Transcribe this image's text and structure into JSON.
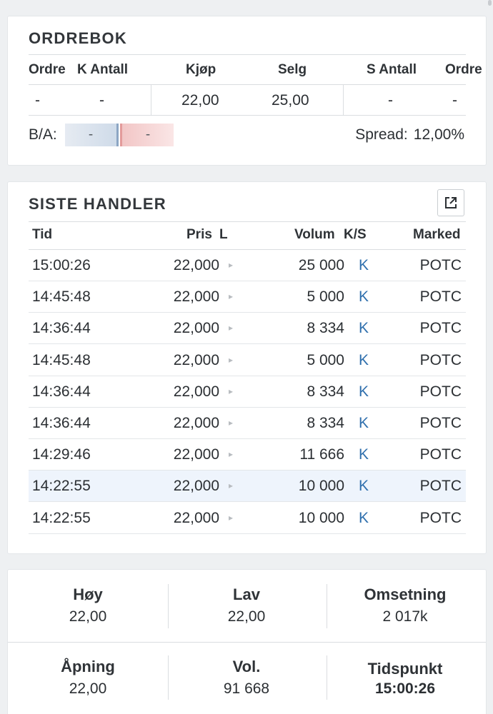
{
  "orderbook": {
    "title": "ORDREBOK",
    "headers": [
      "Ordre",
      "K Antall",
      "Kjøp",
      "Selg",
      "S Antall",
      "Ordre"
    ],
    "values": [
      "-",
      "-",
      "22,00",
      "25,00",
      "-",
      "-"
    ],
    "ba_label": "B/A:",
    "bid_value": "-",
    "ask_value": "-",
    "spread_label": "Spread:",
    "spread_value": "12,00%"
  },
  "trades": {
    "title": "SISTE HANDLER",
    "export_icon": "external-link-icon",
    "headers": {
      "time": "Tid",
      "price": "Pris",
      "l": "L",
      "volume": "Volum",
      "ks": "K/S",
      "market": "Marked"
    },
    "rows": [
      {
        "time": "15:00:26",
        "price": "22,000",
        "volume": "25 000",
        "ks": "K",
        "market": "POTC"
      },
      {
        "time": "14:45:48",
        "price": "22,000",
        "volume": "5 000",
        "ks": "K",
        "market": "POTC"
      },
      {
        "time": "14:36:44",
        "price": "22,000",
        "volume": "8 334",
        "ks": "K",
        "market": "POTC"
      },
      {
        "time": "14:45:48",
        "price": "22,000",
        "volume": "5 000",
        "ks": "K",
        "market": "POTC"
      },
      {
        "time": "14:36:44",
        "price": "22,000",
        "volume": "8 334",
        "ks": "K",
        "market": "POTC"
      },
      {
        "time": "14:36:44",
        "price": "22,000",
        "volume": "8 334",
        "ks": "K",
        "market": "POTC"
      },
      {
        "time": "14:29:46",
        "price": "22,000",
        "volume": "11 666",
        "ks": "K",
        "market": "POTC"
      },
      {
        "time": "14:22:55",
        "price": "22,000",
        "volume": "10 000",
        "ks": "K",
        "market": "POTC"
      },
      {
        "time": "14:22:55",
        "price": "22,000",
        "volume": "10 000",
        "ks": "K",
        "market": "POTC"
      }
    ],
    "highlighted_row": 7
  },
  "stats": {
    "high": {
      "label": "Høy",
      "value": "22,00"
    },
    "low": {
      "label": "Lav",
      "value": "22,00"
    },
    "turnover": {
      "label": "Omsetning",
      "value": "2 017k"
    },
    "open": {
      "label": "Åpning",
      "value": "22,00"
    },
    "volume": {
      "label": "Vol.",
      "value": "91 668"
    },
    "timestamp": {
      "label": "Tidspunkt",
      "value": "15:00:26"
    }
  },
  "colors": {
    "buy_indicator": "#2f6fad",
    "bid_bar": "#cfdbe9",
    "ask_bar": "#f2c6c6",
    "highlight_row": "#eef4fc"
  }
}
